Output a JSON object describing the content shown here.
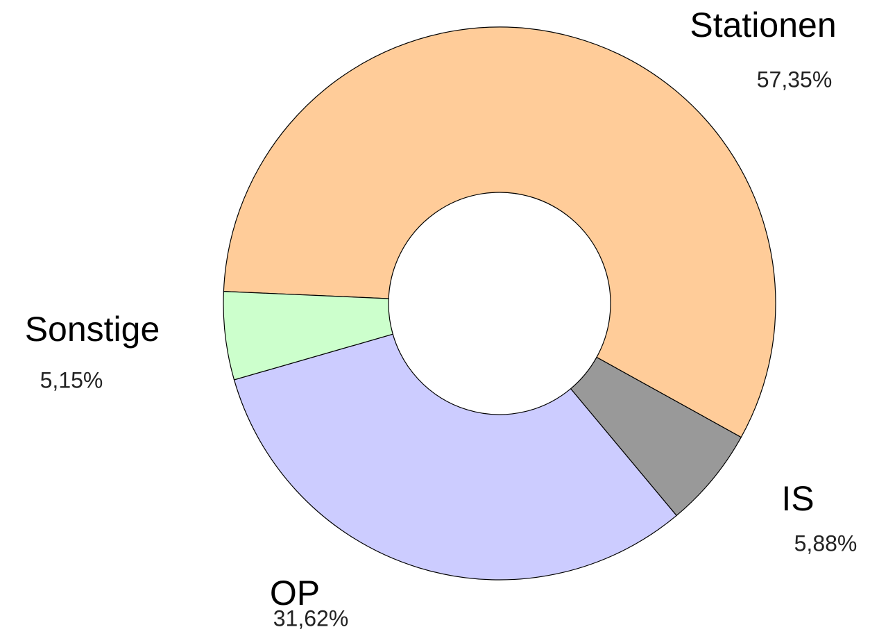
{
  "chart_data": {
    "type": "donut",
    "categories": [
      "Stationen",
      "IS",
      "OP",
      "Sonstige"
    ],
    "values": [
      57.35,
      5.88,
      31.62,
      5.15
    ],
    "value_labels": [
      "57,35%",
      "5,88%",
      "31,62%",
      "5,15%"
    ],
    "colors": [
      "#ffcc99",
      "#999999",
      "#ccccff",
      "#ccffcc"
    ]
  }
}
